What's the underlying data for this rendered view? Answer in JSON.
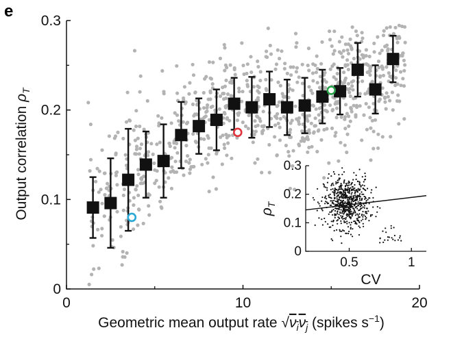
{
  "panel_label": "e",
  "chart_data": [
    {
      "type": "scatter",
      "title": "",
      "xlabel": "Geometric mean output rate √(ν_i ν_j) (spikes s⁻¹)",
      "ylabel": "Output correlation ρ_T",
      "xlabel_parts": {
        "prefix": "Geometric mean output rate ",
        "radical": "√",
        "radicand": "ν",
        "sub_i": "i",
        "sub_j": "j",
        "suffix": " (spikes s",
        "exp": "−1",
        "close": ")"
      },
      "ylabel_parts": {
        "text": "Output correlation ",
        "symbol": "ρ",
        "sub": "T"
      },
      "xlim": [
        0,
        20
      ],
      "ylim": [
        0,
        0.3
      ],
      "xticks": [
        0,
        10,
        20
      ],
      "yticks": [
        0,
        0.1,
        0.2,
        0.3
      ],
      "xtick_labels": [
        "0",
        "10",
        "20"
      ],
      "ytick_labels": [
        "0",
        "0.1",
        "0.2",
        "0.3"
      ],
      "grid": false,
      "binned_means": {
        "x": [
          1.5,
          2.5,
          3.5,
          4.5,
          5.5,
          6.5,
          7.5,
          8.5,
          9.5,
          10.5,
          11.5,
          12.5,
          13.5,
          14.5,
          15.5,
          16.5,
          17.5,
          18.5
        ],
        "y": [
          0.091,
          0.096,
          0.122,
          0.139,
          0.143,
          0.172,
          0.182,
          0.189,
          0.207,
          0.203,
          0.212,
          0.203,
          0.205,
          0.215,
          0.221,
          0.245,
          0.223,
          0.257
        ],
        "err": [
          0.034,
          0.05,
          0.057,
          0.037,
          0.041,
          0.037,
          0.031,
          0.034,
          0.029,
          0.034,
          0.031,
          0.031,
          0.031,
          0.03,
          0.026,
          0.03,
          0.027,
          0.026
        ]
      },
      "highlighted_points": [
        {
          "x": 3.7,
          "y": 0.08,
          "color": "#29a8d6"
        },
        {
          "x": 9.7,
          "y": 0.175,
          "color": "#e0343c"
        },
        {
          "x": 15.0,
          "y": 0.222,
          "color": "#2aa24a"
        }
      ],
      "scatter_color": "#b3b3b3",
      "marker_color": "#111111"
    },
    {
      "type": "scatter",
      "title": "",
      "xlabel": "CV",
      "ylabel": "ρ_T",
      "ylabel_parts": {
        "symbol": "ρ",
        "sub": "T"
      },
      "xlim": [
        0.15,
        1.12
      ],
      "ylim": [
        0,
        0.3
      ],
      "xticks": [
        0.5,
        1
      ],
      "yticks": [
        0,
        0.1,
        0.2,
        0.3
      ],
      "xtick_labels": [
        "0.5",
        "1"
      ],
      "ytick_labels": [
        "0",
        "0.1",
        "0.2",
        "0.3"
      ],
      "grid": false,
      "regression_line": {
        "x": [
          0.15,
          1.12
        ],
        "y": [
          0.145,
          0.195
        ]
      }
    }
  ]
}
